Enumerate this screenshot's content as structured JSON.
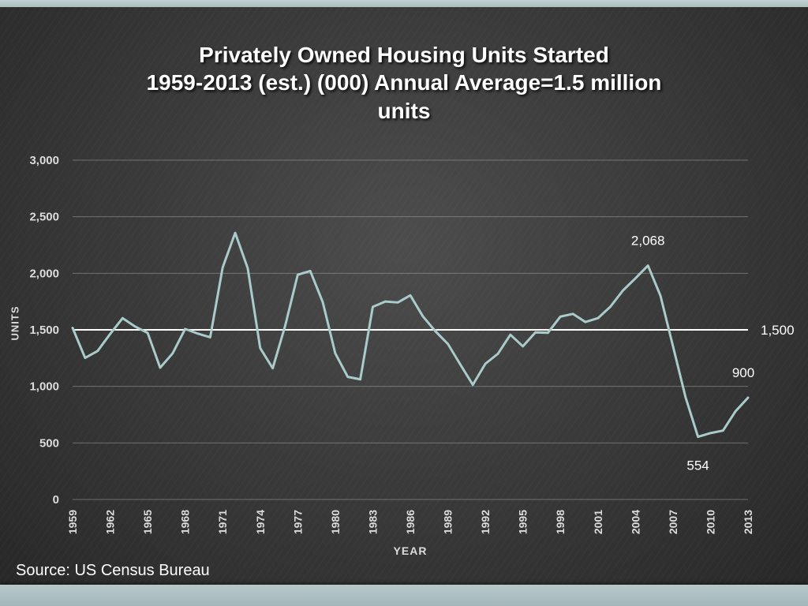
{
  "slide": {
    "title_lines": [
      "Privately Owned Housing Units Started",
      "1959-2013 (est.) (000) Annual Average=1.5 million",
      "units"
    ],
    "source": "Source: US Census Bureau"
  },
  "axes": {
    "x_label": "YEAR",
    "y_label": "UNITS"
  },
  "colors": {
    "line": "#a9cbca",
    "average_line": "#ffffff",
    "grid": "#aaaaaa",
    "tick_text": "#dcdcdc",
    "annotation_text": "#ffffff",
    "band": "#b2c3c4",
    "title_text": "#ffffff"
  },
  "chart_data": {
    "type": "line",
    "title": "Privately Owned Housing Units Started 1959-2013 (est.) (000) Annual Average=1.5 million units",
    "xlabel": "YEAR",
    "ylabel": "UNITS",
    "ylim": [
      0,
      3000
    ],
    "grid": true,
    "legend": false,
    "y_ticks": [
      {
        "value": 0,
        "label": "0"
      },
      {
        "value": 500,
        "label": "500"
      },
      {
        "value": 1000,
        "label": "1,000"
      },
      {
        "value": 1500,
        "label": "1,500"
      },
      {
        "value": 2000,
        "label": "2,000"
      },
      {
        "value": 2500,
        "label": "2,500"
      },
      {
        "value": 3000,
        "label": "3,000"
      }
    ],
    "x_ticks": [
      1959,
      1962,
      1965,
      1968,
      1971,
      1974,
      1977,
      1980,
      1983,
      1986,
      1989,
      1992,
      1995,
      1998,
      2001,
      2004,
      2007,
      2010,
      2013
    ],
    "x": [
      1959,
      1960,
      1961,
      1962,
      1963,
      1964,
      1965,
      1966,
      1967,
      1968,
      1969,
      1970,
      1971,
      1972,
      1973,
      1974,
      1975,
      1976,
      1977,
      1978,
      1979,
      1980,
      1981,
      1982,
      1983,
      1984,
      1985,
      1986,
      1987,
      1988,
      1989,
      1990,
      1991,
      1992,
      1993,
      1994,
      1995,
      1996,
      1997,
      1998,
      1999,
      2000,
      2001,
      2002,
      2003,
      2004,
      2005,
      2006,
      2007,
      2008,
      2009,
      2010,
      2011,
      2012,
      2013
    ],
    "values": [
      1517,
      1252,
      1313,
      1463,
      1603,
      1529,
      1473,
      1165,
      1292,
      1508,
      1467,
      1434,
      2052,
      2357,
      2045,
      1338,
      1160,
      1538,
      1987,
      2020,
      1745,
      1292,
      1084,
      1062,
      1703,
      1750,
      1742,
      1805,
      1620,
      1488,
      1376,
      1193,
      1014,
      1200,
      1288,
      1457,
      1354,
      1477,
      1474,
      1617,
      1641,
      1569,
      1603,
      1705,
      1848,
      1956,
      2068,
      1801,
      1355,
      906,
      554,
      587,
      609,
      780,
      900
    ],
    "average_line": {
      "value": 1500,
      "label": "1,500"
    },
    "annotations": [
      {
        "year": 2005,
        "value": 2068,
        "label": "2,068",
        "position": "above"
      },
      {
        "year": 2009,
        "value": 554,
        "label": "554",
        "position": "below"
      },
      {
        "year": 2013,
        "value": 900,
        "label": "900",
        "position": "above"
      }
    ]
  }
}
